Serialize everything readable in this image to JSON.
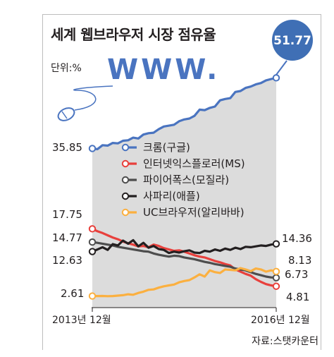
{
  "title": "세계 웹브라우저 시장 점유율",
  "unit_label": "단위:%",
  "source": "자료:스탯카운터",
  "decoration_text": "WWW.",
  "callout_value": "51.77",
  "chart_data": {
    "type": "line",
    "title": "세계 웹브라우저 시장 점유율",
    "unit": "%",
    "x_start": "2013년 12월",
    "x_end": "2016년 12월",
    "x_tick_labels": [
      "2013년 12월",
      "2016년 12월"
    ],
    "ylim": [
      0,
      55
    ],
    "grid": false,
    "legend_position": "center",
    "series": [
      {
        "name": "크롬(구글)",
        "color": "#4a74c0",
        "start_label": "35.85",
        "end_label": "51.77",
        "values": [
          35.85,
          35.7,
          36.6,
          36.5,
          37.1,
          37.0,
          37.6,
          37.7,
          38.3,
          38.1,
          39.0,
          39.3,
          39.4,
          40.2,
          40.8,
          41.0,
          41.2,
          42.0,
          42.4,
          42.6,
          43.2,
          44.6,
          44.5,
          45.0,
          45.3,
          46.7,
          47.0,
          47.2,
          48.6,
          48.8,
          49.5,
          49.8,
          50.3,
          50.6,
          51.2,
          51.5,
          51.77
        ]
      },
      {
        "name": "인터넷익스플로러(MS)",
        "color": "#e8403c",
        "start_label": "17.75",
        "end_label": "4.81",
        "values": [
          17.75,
          17.2,
          16.8,
          16.3,
          15.8,
          15.4,
          14.9,
          14.5,
          14.2,
          13.8,
          13.9,
          13.6,
          14.2,
          13.9,
          13.4,
          13.1,
          12.8,
          12.9,
          12.6,
          12.2,
          11.8,
          11.5,
          11.3,
          10.9,
          10.5,
          10.2,
          9.8,
          9.5,
          8.6,
          8.1,
          7.6,
          7.2,
          6.4,
          5.8,
          5.3,
          5.0,
          4.81
        ]
      },
      {
        "name": "파이어폭스(모질라)",
        "color": "#4d4d4d",
        "start_label": "14.77",
        "end_label": "6.73",
        "values": [
          14.77,
          14.6,
          14.4,
          14.2,
          14.0,
          13.7,
          13.5,
          13.3,
          13.1,
          12.9,
          12.7,
          12.6,
          12.2,
          11.9,
          11.7,
          11.5,
          11.7,
          11.6,
          11.3,
          11.1,
          10.9,
          10.6,
          10.3,
          10.1,
          9.8,
          9.6,
          9.4,
          9.2,
          8.8,
          8.6,
          8.4,
          8.0,
          7.6,
          7.3,
          7.0,
          6.8,
          6.73
        ]
      },
      {
        "name": "사파리(애플)",
        "color": "#231f20",
        "start_label": "12.63",
        "end_label": "14.36",
        "values": [
          12.63,
          13.1,
          13.6,
          13.0,
          14.3,
          14.0,
          15.1,
          14.4,
          15.2,
          13.8,
          14.6,
          13.5,
          13.9,
          13.2,
          13.0,
          12.3,
          12.6,
          12.4,
          12.7,
          12.9,
          12.4,
          12.3,
          12.8,
          12.6,
          13.1,
          12.8,
          13.3,
          13.0,
          13.5,
          13.2,
          13.7,
          13.6,
          13.8,
          14.0,
          13.9,
          14.2,
          14.36
        ]
      },
      {
        "name": "UC브라우저(알리바바)",
        "color": "#fbb040",
        "start_label": "2.61",
        "end_label": "8.13",
        "values": [
          2.61,
          2.6,
          2.62,
          2.58,
          2.6,
          2.7,
          2.8,
          3.0,
          2.9,
          3.3,
          3.6,
          4.0,
          4.1,
          4.5,
          4.8,
          5.0,
          5.2,
          5.7,
          6.0,
          6.2,
          6.8,
          7.5,
          7.0,
          8.4,
          8.0,
          7.8,
          8.6,
          8.5,
          8.4,
          8.9,
          8.6,
          8.2,
          8.8,
          8.6,
          8.1,
          8.4,
          8.13
        ]
      }
    ]
  }
}
